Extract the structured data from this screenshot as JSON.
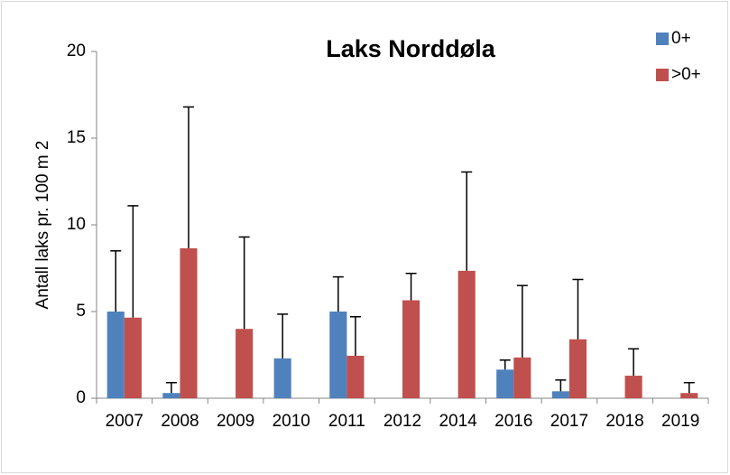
{
  "chart_data": {
    "type": "bar",
    "title": "Laks Norddøla",
    "y_label": "Antall laks pr. 100 m 2",
    "categories": [
      "2007",
      "2008",
      "2009",
      "2010",
      "2011",
      "2012",
      "2014",
      "2016",
      "2017",
      "2018",
      "2019"
    ],
    "series": [
      {
        "name": "0+",
        "color": "#4f81bd",
        "values": [
          5.0,
          0.3,
          0,
          2.3,
          5.0,
          0,
          0,
          1.65,
          0.4,
          0,
          0
        ],
        "errors": [
          3.5,
          0.6,
          null,
          2.55,
          2.0,
          null,
          null,
          0.55,
          0.65,
          null,
          null
        ]
      },
      {
        "name": ">0+",
        "color": "#c0504d",
        "values": [
          4.65,
          8.65,
          4.0,
          0,
          2.45,
          5.65,
          7.35,
          2.35,
          3.4,
          1.3,
          0.3
        ],
        "errors": [
          6.45,
          8.15,
          5.3,
          null,
          2.25,
          1.55,
          5.7,
          4.15,
          3.45,
          1.55,
          0.6
        ]
      }
    ],
    "ylim": [
      0,
      20
    ],
    "yticks": [
      0,
      5,
      10,
      15,
      20
    ],
    "legend": "top-right"
  }
}
